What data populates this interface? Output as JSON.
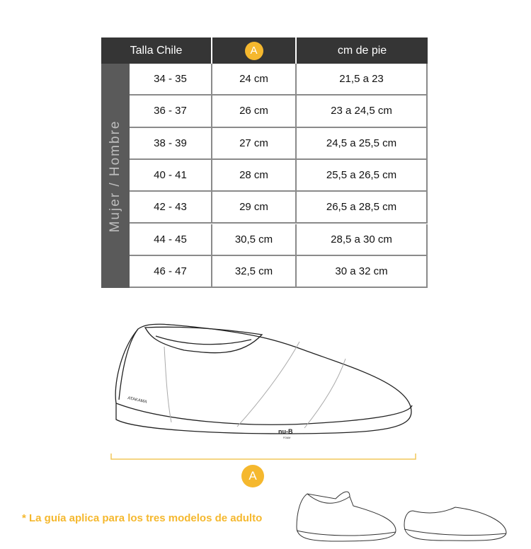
{
  "table": {
    "headers": [
      "Talla Chile",
      "A",
      "cm de pie"
    ],
    "group_label": "Mujer / Hombre",
    "rows": [
      {
        "talla": "34 - 35",
        "a": "24 cm",
        "pie": "21,5 a 23"
      },
      {
        "talla": "36 - 37",
        "a": "26 cm",
        "pie": "23 a 24,5 cm"
      },
      {
        "talla": "38 - 39",
        "a": "27 cm",
        "pie": "24,5 a 25,5 cm"
      },
      {
        "talla": "40 - 41",
        "a": "28 cm",
        "pie": "25,5 a 26,5 cm"
      },
      {
        "talla": "42 - 43",
        "a": "29 cm",
        "pie": "26,5 a 28,5 cm"
      },
      {
        "talla": "44 - 45",
        "a": "30,5 cm",
        "pie": "28,5 a 30 cm"
      },
      {
        "talla": "46 - 47",
        "a": "32,5 cm",
        "pie": "30 a 32 cm"
      }
    ]
  },
  "illustration": {
    "brand_label": "ATAKAMA",
    "sole_logo": "nu-B",
    "sole_sub": "FOAM",
    "measure_label": "A"
  },
  "footnote": "* La guía aplica para los tres modelos de adulto",
  "colors": {
    "accent": "#f5b82e",
    "header": "#353535",
    "side": "#5a5a5a"
  }
}
